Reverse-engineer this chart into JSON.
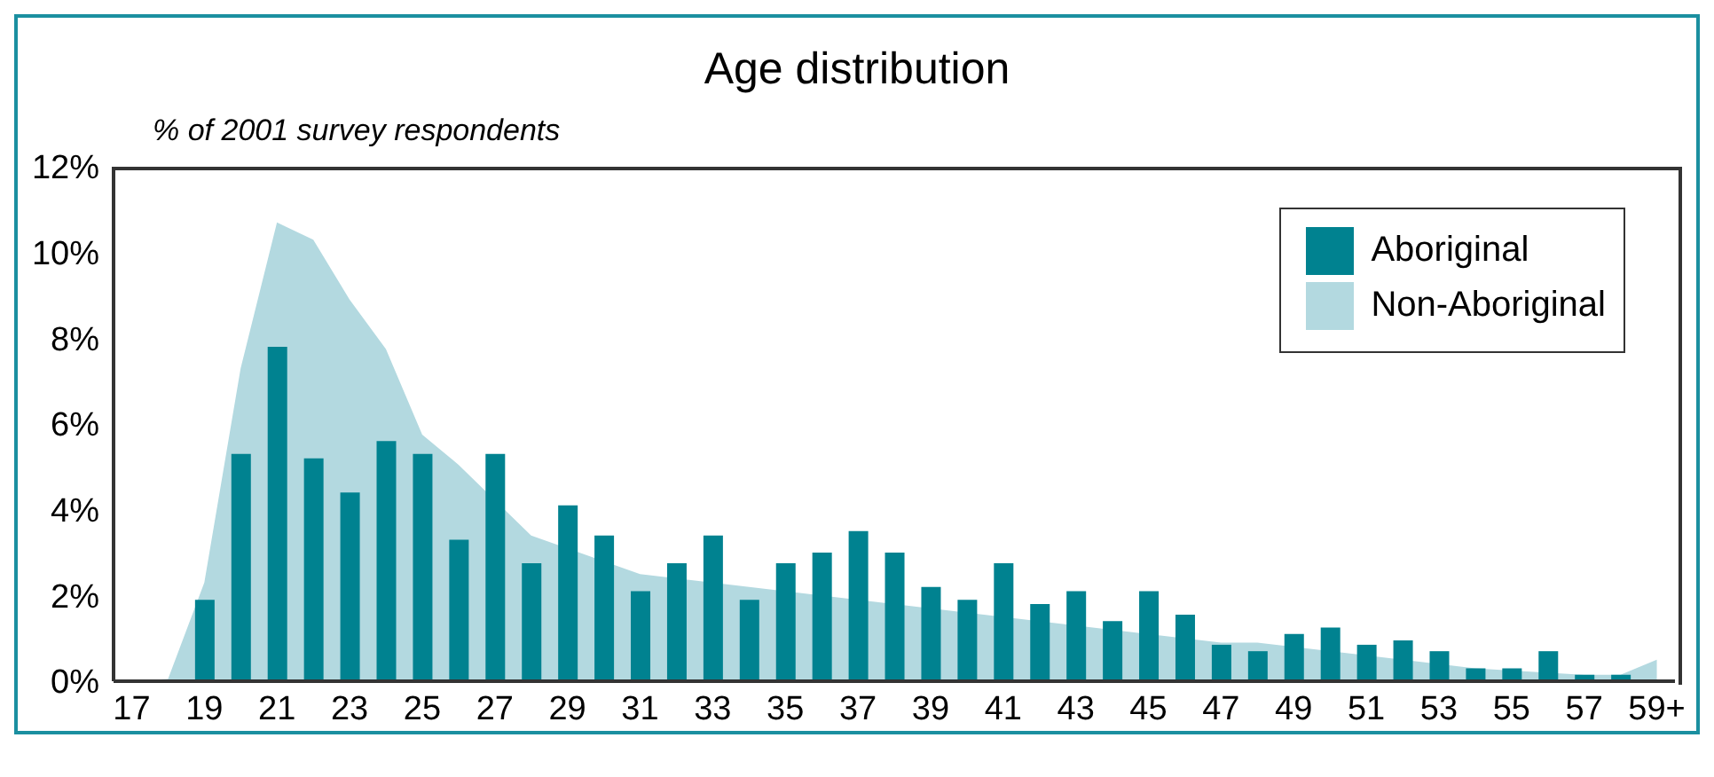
{
  "chart_data": {
    "type": "bar",
    "title": "Age distribution",
    "ylabel": "% of 2001 survey respondents",
    "categories": [
      "17",
      null,
      "19",
      null,
      "21",
      null,
      "23",
      null,
      "25",
      null,
      "27",
      null,
      "29",
      null,
      "31",
      null,
      "33",
      null,
      "35",
      null,
      "37",
      null,
      "39",
      null,
      "41",
      null,
      "43",
      null,
      "45",
      null,
      "47",
      null,
      "49",
      null,
      "51",
      null,
      "53",
      null,
      "55",
      null,
      "57",
      null,
      "59+"
    ],
    "series": [
      {
        "name": "Aboriginal",
        "color": "#008290",
        "values": [
          0,
          0,
          1.9,
          5.3,
          7.8,
          5.2,
          4.4,
          5.6,
          5.3,
          3.3,
          5.3,
          2.75,
          4.1,
          3.4,
          2.1,
          2.75,
          3.4,
          1.9,
          2.75,
          3.0,
          3.5,
          3.0,
          2.2,
          1.9,
          2.75,
          1.8,
          2.1,
          1.4,
          2.1,
          1.55,
          0.85,
          0.7,
          1.1,
          1.25,
          0.85,
          0.95,
          0.7,
          0.3,
          0.3,
          0.7,
          0.15,
          0.15,
          null
        ]
      },
      {
        "name": "Non-Aboriginal",
        "type": "area",
        "color": "#b3d9e0",
        "values": [
          0,
          0.05,
          2.3,
          7.3,
          10.7,
          10.3,
          8.9,
          7.75,
          5.75,
          5.05,
          null,
          3.4,
          null,
          null,
          2.5,
          null,
          null,
          null,
          null,
          null,
          null,
          null,
          null,
          null,
          null,
          null,
          null,
          null,
          null,
          null,
          0.9,
          0.9,
          null,
          null,
          null,
          null,
          null,
          0.3,
          0.25,
          null,
          0.15,
          0.15,
          0.5
        ]
      }
    ],
    "ylim": [
      0,
      12
    ],
    "yticks": [
      {
        "value": 0,
        "label": "0%"
      },
      {
        "value": 2,
        "label": "2%"
      },
      {
        "value": 4,
        "label": "4%"
      },
      {
        "value": 6,
        "label": "6%"
      },
      {
        "value": 8,
        "label": "8%"
      },
      {
        "value": 10,
        "label": "10%"
      },
      {
        "value": 12,
        "label": "12%"
      }
    ],
    "grid": false,
    "legend": "top right"
  }
}
